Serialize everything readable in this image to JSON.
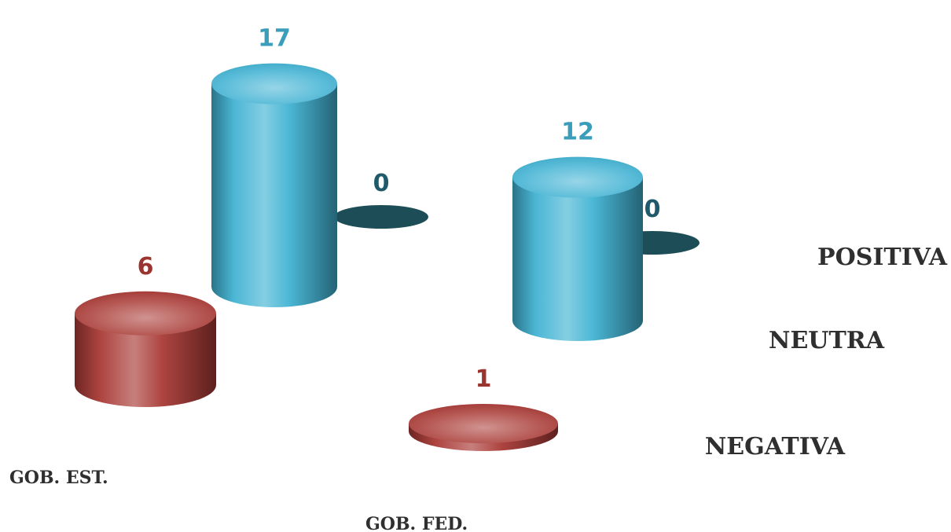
{
  "chart_data": {
    "type": "bar",
    "style": "3d-cylinder",
    "categories": [
      "GOB. EST.",
      "GOB. FED."
    ],
    "series": [
      {
        "name": "POSITIVA",
        "values": [
          17,
          12
        ],
        "color": "#41b3d3",
        "label_color": "#3a9dba"
      },
      {
        "name": "NEUTRA",
        "values": [
          0,
          0
        ],
        "color": "#1d4d56",
        "label_color": "#1e5a6a"
      },
      {
        "name": "NEGATIVA",
        "values": [
          6,
          1
        ],
        "color": "#a93a36",
        "label_color": "#9b3430"
      }
    ],
    "legend": "right",
    "grid": false
  }
}
